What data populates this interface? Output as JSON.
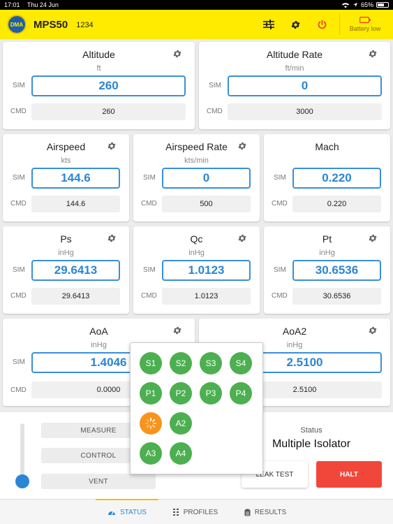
{
  "status_bar": {
    "time": "17:01",
    "date": "Thu 24 Jun",
    "battery": "65%"
  },
  "header": {
    "logo_text": "DMA",
    "title": "MPS50",
    "serial": "1234",
    "battery_status": "Battery low"
  },
  "labels": {
    "sim": "SIM",
    "cmd": "CMD"
  },
  "cards": {
    "altitude": {
      "title": "Altitude",
      "unit": "ft",
      "sim": "260",
      "cmd": "260"
    },
    "altitude_rate": {
      "title": "Altitude Rate",
      "unit": "ft/min",
      "sim": "0",
      "cmd": "3000"
    },
    "airspeed": {
      "title": "Airspeed",
      "unit": "kts",
      "sim": "144.6",
      "cmd": "144.6"
    },
    "airspeed_rate": {
      "title": "Airspeed Rate",
      "unit": "kts/min",
      "sim": "0",
      "cmd": "500"
    },
    "mach": {
      "title": "Mach",
      "unit": "",
      "sim": "0.220",
      "cmd": "0.220"
    },
    "ps": {
      "title": "Ps",
      "unit": "inHg",
      "sim": "29.6413",
      "cmd": "29.6413"
    },
    "qc": {
      "title": "Qc",
      "unit": "inHg",
      "sim": "1.0123",
      "cmd": "1.0123"
    },
    "pt": {
      "title": "Pt",
      "unit": "inHg",
      "sim": "30.6536",
      "cmd": "30.6536"
    },
    "aoa": {
      "title": "AoA",
      "unit": "inHg",
      "sim": "1.4046",
      "cmd": "0.0000"
    },
    "aoa2": {
      "title": "AoA2",
      "unit": "inHg",
      "sim": "2.5100",
      "cmd": "2.5100"
    }
  },
  "modes": {
    "measure": "MEASURE",
    "control": "CONTROL",
    "vent": "VENT"
  },
  "status": {
    "label": "Status",
    "value": "Multiple Isolator"
  },
  "actions": {
    "leak_test": "LEAK TEST",
    "halt": "HALT"
  },
  "tabs": {
    "status": "STATUS",
    "profiles": "PROFILES",
    "results": "RESULTS"
  },
  "isolator_popup": {
    "row1": [
      "S1",
      "S2",
      "S3",
      "S4"
    ],
    "row2": [
      "P1",
      "P2",
      "P3",
      "P4"
    ],
    "row3": [
      "",
      "A2"
    ],
    "row4": [
      "A3",
      "A4"
    ]
  },
  "colors": {
    "header": "#ffeb00",
    "accent": "#2a86d4",
    "isolator_on": "#4caf50",
    "isolator_busy": "#f7941d",
    "halt": "#f1473a"
  }
}
